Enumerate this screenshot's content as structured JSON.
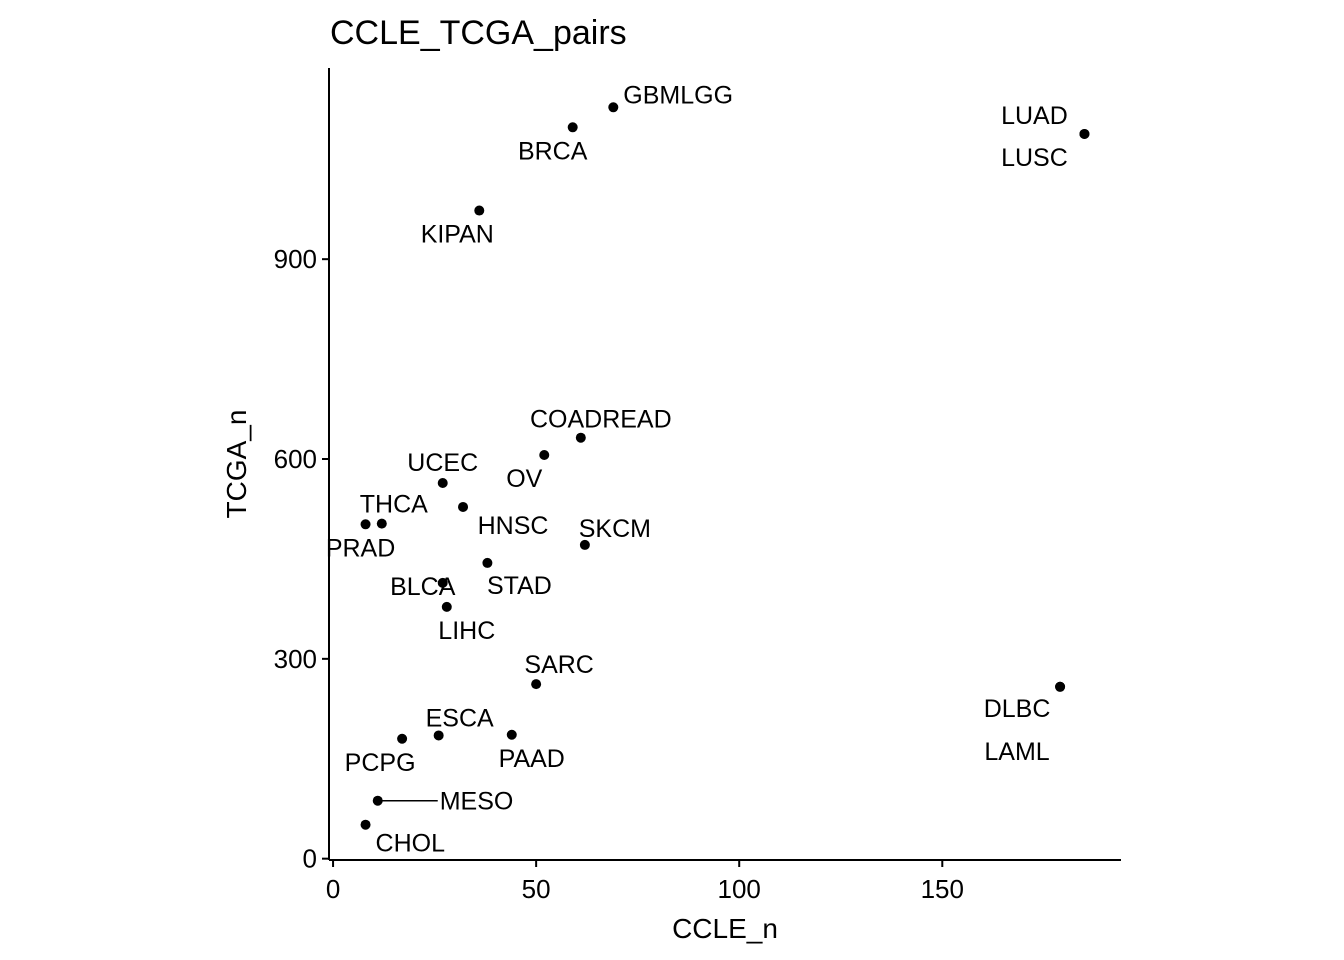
{
  "chart_data": {
    "type": "scatter",
    "title": "CCLE_TCGA_pairs",
    "xlabel": "CCLE_n",
    "ylabel": "TCGA_n",
    "xlim": [
      -1,
      194
    ],
    "ylim": [
      -2,
      1187
    ],
    "x_ticks": [
      0,
      50,
      100,
      150
    ],
    "y_ticks": [
      0,
      300,
      600,
      900
    ],
    "grid": false,
    "legend": "none",
    "point_color": "#000000",
    "points": [
      {
        "label": "GBMLGG",
        "x": 69,
        "y": 1128
      },
      {
        "label": "BRCA",
        "x": 59,
        "y": 1098
      },
      {
        "label": "LUAD",
        "x": 185,
        "y": 1088
      },
      {
        "label": "LUSC",
        "x": 185,
        "y": 1088
      },
      {
        "label": "KIPAN",
        "x": 36,
        "y": 973
      },
      {
        "label": "COADREAD",
        "x": 61,
        "y": 632
      },
      {
        "label": "OV",
        "x": 52,
        "y": 606
      },
      {
        "label": "UCEC",
        "x": 27,
        "y": 564
      },
      {
        "label": "HNSC",
        "x": 32,
        "y": 528
      },
      {
        "label": "THCA",
        "x": 12,
        "y": 503
      },
      {
        "label": "PRAD",
        "x": 8,
        "y": 502
      },
      {
        "label": "SKCM",
        "x": 62,
        "y": 471
      },
      {
        "label": "STAD",
        "x": 38,
        "y": 444
      },
      {
        "label": "BLCA",
        "x": 27,
        "y": 414
      },
      {
        "label": "LIHC",
        "x": 28,
        "y": 378
      },
      {
        "label": "SARC",
        "x": 50,
        "y": 262
      },
      {
        "label": "DLBC",
        "x": 179,
        "y": 258
      },
      {
        "label": "LAML",
        "x": 179,
        "y": 258
      },
      {
        "label": "PAAD",
        "x": 44,
        "y": 186
      },
      {
        "label": "ESCA",
        "x": 26,
        "y": 185
      },
      {
        "label": "PCPG",
        "x": 17,
        "y": 180
      },
      {
        "label": "MESO",
        "x": 11,
        "y": 87
      },
      {
        "label": "CHOL",
        "x": 8,
        "y": 51
      }
    ]
  }
}
